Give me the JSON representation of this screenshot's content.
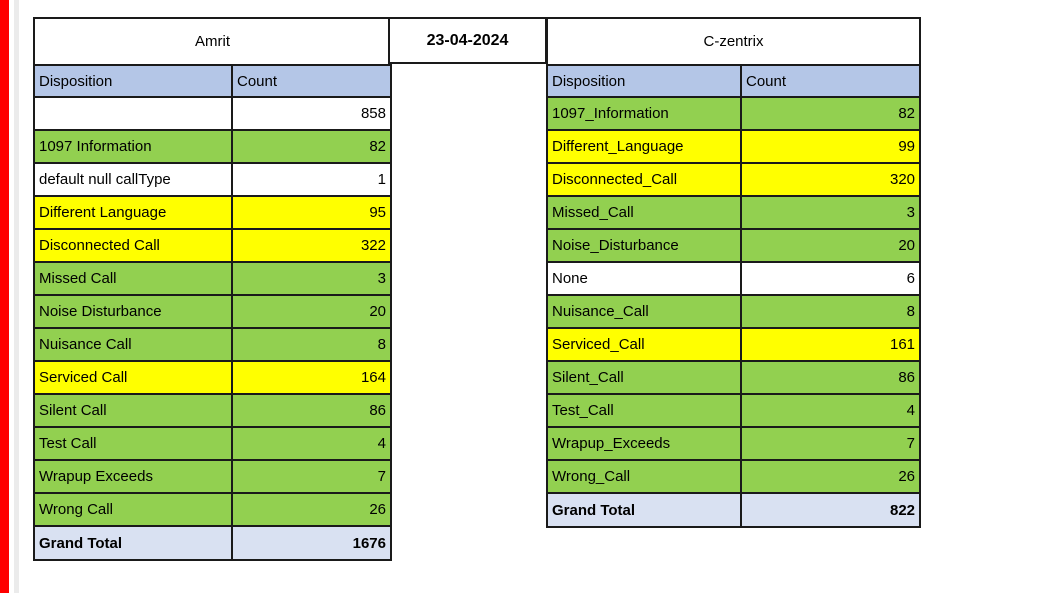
{
  "date_label": "23-04-2024",
  "colors": {
    "green": "#92d050",
    "yellow": "#ffff00",
    "header_blue": "#b4c6e7",
    "total_blue": "#d9e1f2",
    "border": "#1a1a1a",
    "red": "#ff0000",
    "gutter": "#ebebeb"
  },
  "tables": [
    {
      "title": "Amrit",
      "columns": [
        "Disposition",
        "Count"
      ],
      "rows": [
        {
          "label": "",
          "count": "858",
          "color": "white"
        },
        {
          "label": "1097 Information",
          "count": "82",
          "color": "green"
        },
        {
          "label": "default null callType",
          "count": "1",
          "color": "white"
        },
        {
          "label": "Different Language",
          "count": "95",
          "color": "yellow"
        },
        {
          "label": "Disconnected Call",
          "count": "322",
          "color": "yellow"
        },
        {
          "label": "Missed Call",
          "count": "3",
          "color": "green"
        },
        {
          "label": "Noise Disturbance",
          "count": "20",
          "color": "green"
        },
        {
          "label": "Nuisance Call",
          "count": "8",
          "color": "green"
        },
        {
          "label": "Serviced Call",
          "count": "164",
          "color": "yellow"
        },
        {
          "label": "Silent Call",
          "count": "86",
          "color": "green"
        },
        {
          "label": "Test Call",
          "count": "4",
          "color": "green"
        },
        {
          "label": "Wrapup Exceeds",
          "count": "7",
          "color": "green"
        },
        {
          "label": "Wrong Call",
          "count": "26",
          "color": "green"
        }
      ],
      "total": {
        "label": "Grand Total",
        "count": "1676"
      }
    },
    {
      "title": "C-zentrix",
      "columns": [
        "Disposition",
        "Count"
      ],
      "rows": [
        {
          "label": "1097_Information",
          "count": "82",
          "color": "green"
        },
        {
          "label": "Different_Language",
          "count": "99",
          "color": "yellow"
        },
        {
          "label": "Disconnected_Call",
          "count": "320",
          "color": "yellow"
        },
        {
          "label": "Missed_Call",
          "count": "3",
          "color": "green"
        },
        {
          "label": "Noise_Disturbance",
          "count": "20",
          "color": "green"
        },
        {
          "label": "None",
          "count": "6",
          "color": "white"
        },
        {
          "label": "Nuisance_Call",
          "count": "8",
          "color": "green"
        },
        {
          "label": "Serviced_Call",
          "count": "161",
          "color": "yellow"
        },
        {
          "label": "Silent_Call",
          "count": "86",
          "color": "green"
        },
        {
          "label": "Test_Call",
          "count": "4",
          "color": "green"
        },
        {
          "label": "Wrapup_Exceeds",
          "count": "7",
          "color": "green"
        },
        {
          "label": "Wrong_Call",
          "count": "26",
          "color": "green"
        }
      ],
      "total": {
        "label": "Grand Total",
        "count": "822"
      }
    }
  ]
}
